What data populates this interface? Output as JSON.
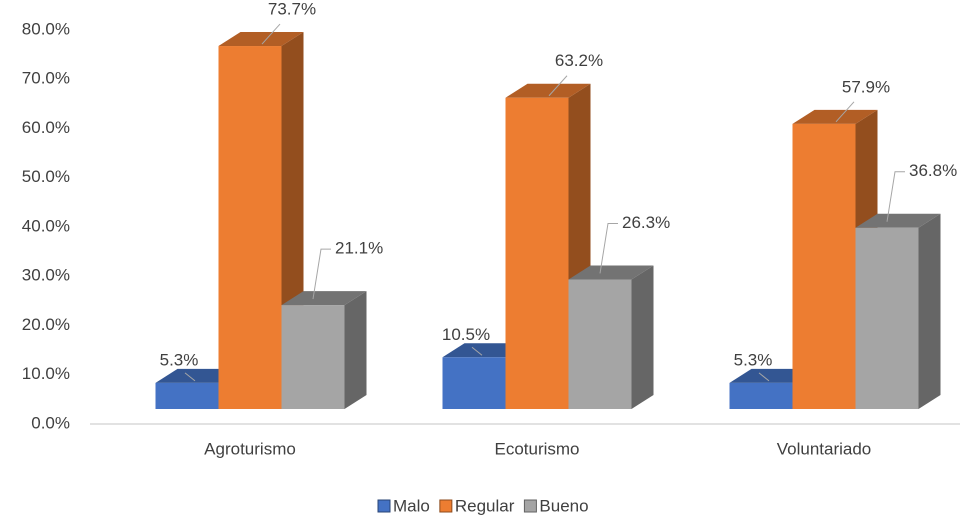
{
  "chart_data": {
    "type": "bar3d",
    "categories": [
      "Agroturismo",
      "Ecoturismo",
      "Voluntariado"
    ],
    "series": [
      {
        "name": "Malo",
        "color": "#4472c4",
        "values": [
          5.3,
          10.5,
          5.3
        ],
        "value_labels": [
          "5.3%",
          "10.5%",
          "5.3%"
        ]
      },
      {
        "name": "Regular",
        "color": "#ed7d31",
        "values": [
          73.7,
          63.2,
          57.9
        ],
        "value_labels": [
          "73.7%",
          "63.2%",
          "57.9%"
        ]
      },
      {
        "name": "Bueno",
        "color": "#a5a5a5",
        "values": [
          21.1,
          26.3,
          36.8
        ],
        "value_labels": [
          "21.1%",
          "26.3%",
          "36.8%"
        ]
      }
    ],
    "ylim": [
      0,
      80
    ],
    "yticks": [
      {
        "value": 0,
        "label": "0.0%"
      },
      {
        "value": 10,
        "label": "10.0%"
      },
      {
        "value": 20,
        "label": "20.0%"
      },
      {
        "value": 30,
        "label": "30.0%"
      },
      {
        "value": 40,
        "label": "40.0%"
      },
      {
        "value": 50,
        "label": "50.0%"
      },
      {
        "value": 60,
        "label": "60.0%"
      },
      {
        "value": 70,
        "label": "70.0%"
      },
      {
        "value": 80,
        "label": "80.0%"
      }
    ],
    "legend": "bottom"
  }
}
